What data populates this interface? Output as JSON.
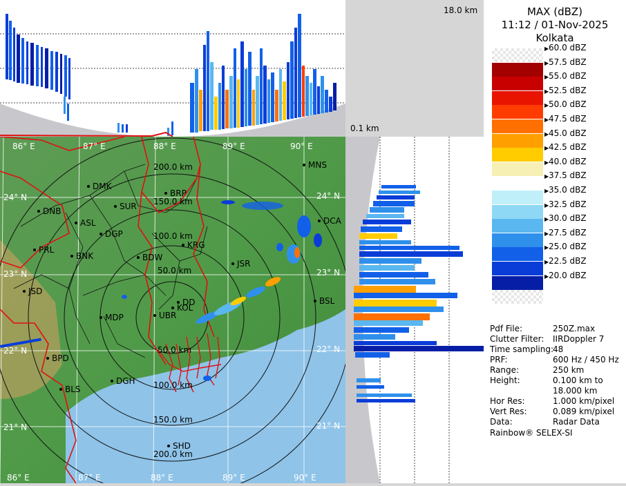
{
  "header": {
    "product": "MAX (dBZ)",
    "datetime": "11:12 / 01-Nov-2025",
    "station": "Kolkata"
  },
  "top_panel": {
    "height_label": "18.0 km"
  },
  "side_panel": {
    "height_label": "0.1 km"
  },
  "legend": [
    {
      "label": "60.0 dBZ",
      "color": "checker"
    },
    {
      "label": "57.5 dBZ",
      "color": "#a30000"
    },
    {
      "label": "55.0 dBZ",
      "color": "#c80000"
    },
    {
      "label": "52.5 dBZ",
      "color": "#e81400"
    },
    {
      "label": "50.0 dBZ",
      "color": "#ff3c00"
    },
    {
      "label": "47.5 dBZ",
      "color": "#ff7000"
    },
    {
      "label": "45.0 dBZ",
      "color": "#ffa000"
    },
    {
      "label": "42.5 dBZ",
      "color": "#ffcc00"
    },
    {
      "label": "40.0 dBZ",
      "color": "#f7f0b4"
    },
    {
      "label": "37.5 dBZ",
      "color": "#ffffff"
    },
    {
      "label": "35.0 dBZ",
      "color": "#bff0fa"
    },
    {
      "label": "32.5 dBZ",
      "color": "#8ed8f5"
    },
    {
      "label": "30.0 dBZ",
      "color": "#5ab7f0"
    },
    {
      "label": "27.5 dBZ",
      "color": "#2f90ec"
    },
    {
      "label": "25.0 dBZ",
      "color": "#1260e8"
    },
    {
      "label": "22.5 dBZ",
      "color": "#0a3dd8"
    },
    {
      "label": "20.0 dBZ",
      "color": "#061ea6"
    },
    {
      "label": "",
      "color": "checker"
    }
  ],
  "info": [
    {
      "key": "Pdf File:",
      "value": "250Z.max"
    },
    {
      "key": "Clutter Filter:",
      "value": "IIRDoppler 7"
    },
    {
      "key": "Time sampling:",
      "value": "48"
    },
    {
      "key": "PRF:",
      "value": "600 Hz / 450 Hz"
    },
    {
      "key": "Range:",
      "value": "250 km"
    },
    {
      "key": "Height:",
      "value": "0.100 km to"
    },
    {
      "key": "",
      "value": "18.000 km"
    },
    {
      "key": "Hor Res:",
      "value": "1.000 km/pixel"
    },
    {
      "key": "Vert Res:",
      "value": "0.089 km/pixel"
    },
    {
      "key": "Data:",
      "value": "Radar Data"
    }
  ],
  "footer": "Rainbow® SELEX-SI",
  "map": {
    "range_rings": [
      "50.0 km",
      "100.0 km",
      "150.0 km",
      "200.0 km"
    ],
    "range_rings_south": [
      "50.0 km",
      "100.0 km",
      "150.0 km",
      "200.0 km"
    ],
    "lon_labels": [
      "86° E",
      "87° E",
      "88° E",
      "89° E",
      "90° E"
    ],
    "lat_labels": [
      "24° N",
      "23° N",
      "22° N",
      "21° N"
    ],
    "lon_labels_right": [
      "24° N",
      "23° N",
      "22° N",
      "21° N"
    ],
    "cities": [
      {
        "name": "MNS"
      },
      {
        "name": "DMK"
      },
      {
        "name": "BRP"
      },
      {
        "name": "SUR"
      },
      {
        "name": "DNB"
      },
      {
        "name": "ASL"
      },
      {
        "name": "DGP"
      },
      {
        "name": "KRG"
      },
      {
        "name": "DCA"
      },
      {
        "name": "PRL"
      },
      {
        "name": "BNK"
      },
      {
        "name": "BDW"
      },
      {
        "name": "JSR"
      },
      {
        "name": "JSD"
      },
      {
        "name": "DD"
      },
      {
        "name": "KOL"
      },
      {
        "name": "UBR"
      },
      {
        "name": "BSL"
      },
      {
        "name": "MDP"
      },
      {
        "name": "BPD"
      },
      {
        "name": "DGH"
      },
      {
        "name": "BLS"
      },
      {
        "name": "SHD"
      }
    ]
  },
  "colors": {
    "land": "#4f9a48",
    "sea": "#8fc3e8",
    "border": "#e01010",
    "district": "#111111",
    "grid": "#ffffff"
  }
}
